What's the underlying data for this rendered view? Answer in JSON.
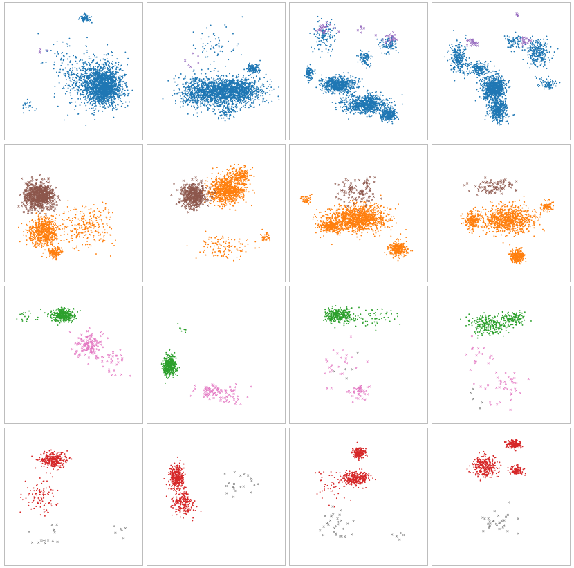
{
  "colors": {
    "blue": "#1f77b4",
    "orange": "#ff7f0e",
    "brown": "#8c564b",
    "green": "#2ca02c",
    "pink": "#e377c2",
    "red": "#d62728",
    "gray": "#7f7f7f",
    "purple": "#9467bd",
    "panel_border": "#bdbdbd"
  },
  "chart_data": {
    "type": "scatter",
    "rows": 4,
    "cols": 4,
    "xlim": [
      0,
      1
    ],
    "ylim": [
      0,
      1
    ],
    "grid": false,
    "axis_labels_shown": false,
    "panels": [
      {
        "row": 0,
        "col": 0,
        "series": [
          {
            "color": "blue",
            "marker": "dot",
            "clusters": [
              [
                0.73,
                0.38,
                0.13,
                0.14,
                1500
              ],
              [
                0.63,
                0.42,
                0.22,
                0.2,
                600
              ],
              [
                0.59,
                0.9,
                0.04,
                0.03,
                70
              ],
              [
                0.4,
                0.6,
                0.15,
                0.15,
                50
              ],
              [
                0.15,
                0.25,
                0.06,
                0.06,
                20
              ]
            ]
          },
          {
            "color": "purple",
            "marker": "cross",
            "clusters": [
              [
                0.25,
                0.65,
                0.05,
                0.03,
                4
              ]
            ]
          }
        ]
      },
      {
        "row": 0,
        "col": 1,
        "series": [
          {
            "color": "blue",
            "marker": "dot",
            "clusters": [
              [
                0.62,
                0.35,
                0.22,
                0.1,
                1500
              ],
              [
                0.38,
                0.34,
                0.17,
                0.12,
                600
              ],
              [
                0.78,
                0.52,
                0.05,
                0.04,
                120
              ],
              [
                0.58,
                0.2,
                0.08,
                0.08,
                100
              ],
              [
                0.5,
                0.7,
                0.15,
                0.15,
                60
              ]
            ]
          },
          {
            "color": "purple",
            "marker": "cross",
            "clusters": [
              [
                0.32,
                0.55,
                0.1,
                0.1,
                6
              ]
            ]
          }
        ]
      },
      {
        "row": 0,
        "col": 2,
        "series": [
          {
            "color": "blue",
            "marker": "dot",
            "clusters": [
              [
                0.35,
                0.4,
                0.12,
                0.06,
                700
              ],
              [
                0.55,
                0.25,
                0.16,
                0.07,
                800
              ],
              [
                0.73,
                0.17,
                0.06,
                0.05,
                300
              ],
              [
                0.13,
                0.48,
                0.03,
                0.05,
                100
              ],
              [
                0.24,
                0.77,
                0.08,
                0.12,
                120
              ],
              [
                0.55,
                0.6,
                0.05,
                0.06,
                90
              ],
              [
                0.73,
                0.7,
                0.06,
                0.06,
                100
              ]
            ]
          },
          {
            "color": "purple",
            "marker": "cross",
            "clusters": [
              [
                0.25,
                0.82,
                0.06,
                0.05,
                25
              ],
              [
                0.74,
                0.75,
                0.06,
                0.05,
                25
              ],
              [
                0.53,
                0.82,
                0.03,
                0.02,
                6
              ]
            ]
          }
        ]
      },
      {
        "row": 0,
        "col": 3,
        "series": [
          {
            "color": "blue",
            "marker": "dot",
            "clusters": [
              [
                0.45,
                0.37,
                0.09,
                0.1,
                800
              ],
              [
                0.48,
                0.2,
                0.07,
                0.09,
                400
              ],
              [
                0.18,
                0.6,
                0.07,
                0.14,
                250
              ],
              [
                0.33,
                0.52,
                0.08,
                0.06,
                200
              ],
              [
                0.78,
                0.64,
                0.09,
                0.1,
                250
              ],
              [
                0.6,
                0.72,
                0.07,
                0.06,
                80
              ],
              [
                0.85,
                0.4,
                0.07,
                0.04,
                80
              ]
            ]
          },
          {
            "color": "purple",
            "marker": "cross",
            "clusters": [
              [
                0.28,
                0.72,
                0.04,
                0.04,
                20
              ],
              [
                0.68,
                0.73,
                0.04,
                0.03,
                20
              ],
              [
                0.62,
                0.93,
                0.02,
                0.02,
                5
              ]
            ]
          }
        ]
      },
      {
        "row": 1,
        "col": 0,
        "series": [
          {
            "color": "orange",
            "marker": "dot",
            "clusters": [
              [
                0.27,
                0.36,
                0.11,
                0.11,
                700
              ],
              [
                0.36,
                0.2,
                0.05,
                0.04,
                150
              ],
              [
                0.6,
                0.4,
                0.2,
                0.16,
                250
              ]
            ]
          },
          {
            "color": "brown",
            "marker": "cross",
            "clusters": [
              [
                0.24,
                0.63,
                0.11,
                0.1,
                600
              ]
            ]
          }
        ]
      },
      {
        "row": 1,
        "col": 1,
        "series": [
          {
            "color": "orange",
            "marker": "dot",
            "clusters": [
              [
                0.58,
                0.67,
                0.14,
                0.1,
                900
              ],
              [
                0.68,
                0.79,
                0.08,
                0.06,
                200
              ],
              [
                0.55,
                0.25,
                0.2,
                0.1,
                120
              ],
              [
                0.88,
                0.32,
                0.05,
                0.04,
                40
              ]
            ]
          },
          {
            "color": "brown",
            "marker": "cross",
            "clusters": [
              [
                0.33,
                0.63,
                0.1,
                0.09,
                400
              ]
            ]
          }
        ]
      },
      {
        "row": 1,
        "col": 2,
        "series": [
          {
            "color": "orange",
            "marker": "dot",
            "clusters": [
              [
                0.5,
                0.46,
                0.22,
                0.1,
                1200
              ],
              [
                0.8,
                0.23,
                0.07,
                0.06,
                300
              ],
              [
                0.3,
                0.4,
                0.1,
                0.05,
                300
              ],
              [
                0.1,
                0.6,
                0.04,
                0.03,
                40
              ]
            ]
          },
          {
            "color": "brown",
            "marker": "cross",
            "clusters": [
              [
                0.5,
                0.66,
                0.18,
                0.1,
                100
              ]
            ]
          }
        ]
      },
      {
        "row": 1,
        "col": 3,
        "series": [
          {
            "color": "orange",
            "marker": "dot",
            "clusters": [
              [
                0.55,
                0.45,
                0.2,
                0.1,
                900
              ],
              [
                0.62,
                0.17,
                0.05,
                0.05,
                300
              ],
              [
                0.28,
                0.44,
                0.06,
                0.07,
                200
              ],
              [
                0.85,
                0.55,
                0.05,
                0.04,
                80
              ]
            ]
          },
          {
            "color": "brown",
            "marker": "cross",
            "clusters": [
              [
                0.45,
                0.7,
                0.16,
                0.06,
                80
              ]
            ]
          }
        ]
      },
      {
        "row": 2,
        "col": 0,
        "series": [
          {
            "color": "green",
            "marker": "dot",
            "clusters": [
              [
                0.42,
                0.8,
                0.08,
                0.05,
                400
              ],
              [
                0.15,
                0.8,
                0.08,
                0.05,
                20
              ]
            ]
          },
          {
            "color": "pink",
            "marker": "cross",
            "clusters": [
              [
                0.62,
                0.57,
                0.1,
                0.1,
                120
              ],
              [
                0.8,
                0.45,
                0.1,
                0.1,
                30
              ]
            ]
          }
        ]
      },
      {
        "row": 2,
        "col": 1,
        "series": [
          {
            "color": "green",
            "marker": "dot",
            "clusters": [
              [
                0.15,
                0.42,
                0.05,
                0.08,
                400
              ],
              [
                0.25,
                0.7,
                0.05,
                0.03,
                10
              ]
            ]
          },
          {
            "color": "pink",
            "marker": "cross",
            "clusters": [
              [
                0.45,
                0.23,
                0.1,
                0.05,
                50
              ],
              [
                0.6,
                0.2,
                0.15,
                0.1,
                40
              ]
            ]
          }
        ]
      },
      {
        "row": 2,
        "col": 2,
        "series": [
          {
            "color": "green",
            "marker": "dot",
            "clusters": [
              [
                0.35,
                0.8,
                0.1,
                0.05,
                300
              ],
              [
                0.6,
                0.78,
                0.2,
                0.08,
                60
              ]
            ]
          },
          {
            "color": "pink",
            "marker": "cross",
            "clusters": [
              [
                0.5,
                0.22,
                0.08,
                0.06,
                40
              ],
              [
                0.35,
                0.45,
                0.15,
                0.15,
                25
              ]
            ]
          },
          {
            "color": "gray",
            "marker": "cross",
            "clusters": [
              [
                0.4,
                0.4,
                0.1,
                0.1,
                5
              ]
            ]
          }
        ]
      },
      {
        "row": 2,
        "col": 3,
        "series": [
          {
            "color": "green",
            "marker": "dot",
            "clusters": [
              [
                0.4,
                0.73,
                0.15,
                0.08,
                250
              ],
              [
                0.6,
                0.78,
                0.08,
                0.05,
                120
              ]
            ]
          },
          {
            "color": "pink",
            "marker": "cross",
            "clusters": [
              [
                0.5,
                0.25,
                0.2,
                0.15,
                40
              ],
              [
                0.3,
                0.5,
                0.1,
                0.1,
                15
              ]
            ]
          },
          {
            "color": "gray",
            "marker": "cross",
            "clusters": [
              [
                0.3,
                0.2,
                0.08,
                0.08,
                5
              ]
            ]
          }
        ]
      },
      {
        "row": 3,
        "col": 0,
        "series": [
          {
            "color": "red",
            "marker": "dot",
            "clusters": [
              [
                0.35,
                0.78,
                0.1,
                0.06,
                300
              ],
              [
                0.25,
                0.5,
                0.12,
                0.15,
                100
              ]
            ]
          },
          {
            "color": "gray",
            "marker": "cross",
            "clusters": [
              [
                0.3,
                0.2,
                0.15,
                0.1,
                15
              ],
              [
                0.85,
                0.25,
                0.05,
                0.05,
                6
              ]
            ]
          }
        ]
      },
      {
        "row": 3,
        "col": 1,
        "series": [
          {
            "color": "red",
            "marker": "dot",
            "clusters": [
              [
                0.2,
                0.65,
                0.06,
                0.1,
                300
              ],
              [
                0.25,
                0.45,
                0.08,
                0.1,
                200
              ]
            ]
          },
          {
            "color": "gray",
            "marker": "cross",
            "clusters": [
              [
                0.7,
                0.6,
                0.15,
                0.15,
                20
              ]
            ]
          }
        ]
      },
      {
        "row": 3,
        "col": 2,
        "series": [
          {
            "color": "red",
            "marker": "dot",
            "clusters": [
              [
                0.48,
                0.64,
                0.1,
                0.05,
                300
              ],
              [
                0.5,
                0.83,
                0.05,
                0.04,
                200
              ],
              [
                0.3,
                0.6,
                0.15,
                0.15,
                50
              ]
            ]
          },
          {
            "color": "gray",
            "marker": "cross",
            "clusters": [
              [
                0.35,
                0.3,
                0.15,
                0.12,
                30
              ],
              [
                0.8,
                0.2,
                0.05,
                0.05,
                5
              ]
            ]
          }
        ]
      },
      {
        "row": 3,
        "col": 3,
        "series": [
          {
            "color": "red",
            "marker": "dot",
            "clusters": [
              [
                0.38,
                0.73,
                0.1,
                0.08,
                300
              ],
              [
                0.6,
                0.9,
                0.05,
                0.03,
                200
              ],
              [
                0.62,
                0.7,
                0.05,
                0.04,
                100
              ]
            ]
          },
          {
            "color": "gray",
            "marker": "cross",
            "clusters": [
              [
                0.5,
                0.3,
                0.15,
                0.1,
                30
              ]
            ]
          }
        ]
      }
    ]
  }
}
